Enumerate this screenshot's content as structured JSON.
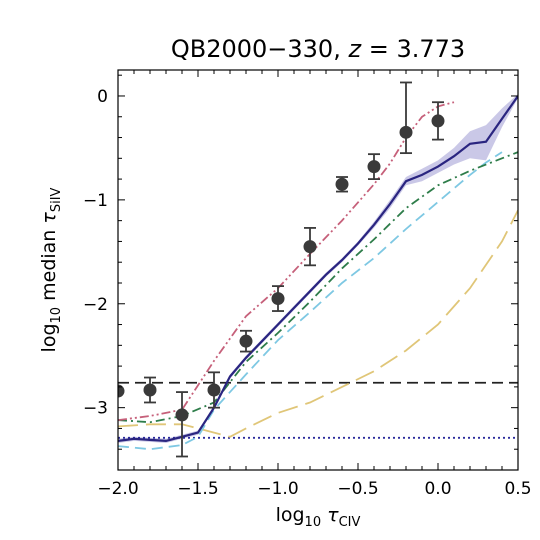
{
  "chart_data": {
    "type": "line",
    "title_main": "QB2000−330,",
    "title_z": "z",
    "title_eq": " = 3.773",
    "xlabel_prefix": "log",
    "xlabel_sub10": "10",
    "xlabel_tau": "τ",
    "xlabel_subion": "CIV",
    "ylabel_prefix": "log",
    "ylabel_sub10": "10",
    "ylabel_mid": " median ",
    "ylabel_tau": "τ",
    "ylabel_subion": "SiIV",
    "xlim": [
      -2.0,
      0.5
    ],
    "ylim": [
      -3.6,
      0.25
    ],
    "xticks": [
      -2.0,
      -1.5,
      -1.0,
      -0.5,
      0.0,
      0.5
    ],
    "xtick_labels": [
      "−2.0",
      "−1.5",
      "−1.0",
      "−0.5",
      "0.0",
      "0.5"
    ],
    "yticks": [
      0,
      -1,
      -2,
      -3
    ],
    "ytick_labels": [
      "0",
      "−1",
      "−2",
      "−3"
    ],
    "grid": false,
    "observed": {
      "x": [
        -2.0,
        -1.8,
        -1.6,
        -1.4,
        -1.2,
        -1.0,
        -0.8,
        -0.6,
        -0.4,
        -0.2,
        0.0
      ],
      "y": [
        -2.84,
        -2.83,
        -3.07,
        -2.83,
        -2.36,
        -1.95,
        -1.45,
        -0.85,
        -0.68,
        -0.35,
        -0.24
      ],
      "err_lo": [
        0.0,
        0.12,
        0.4,
        0.17,
        0.1,
        0.12,
        0.18,
        0.07,
        0.12,
        0.2,
        0.18
      ],
      "err_hi": [
        0.0,
        0.12,
        0.22,
        0.17,
        0.1,
        0.12,
        0.18,
        0.07,
        0.12,
        0.48,
        0.18
      ],
      "color": "#3a3a3a"
    },
    "hlines": [
      {
        "y": -2.76,
        "style": "dashed",
        "color": "#222222"
      },
      {
        "y": -3.29,
        "style": "dotted",
        "color": "#2b2b9c"
      }
    ],
    "series": [
      {
        "style": "solid",
        "color": "#2a2580",
        "band_color": "#b3b0dd",
        "x": [
          -2.0,
          -1.9,
          -1.8,
          -1.7,
          -1.6,
          -1.5,
          -1.4,
          -1.3,
          -1.2,
          -1.1,
          -1.0,
          -0.9,
          -0.8,
          -0.7,
          -0.6,
          -0.5,
          -0.4,
          -0.3,
          -0.2,
          -0.1,
          0.0,
          0.1,
          0.2,
          0.3,
          0.4,
          0.5
        ],
        "y": [
          -3.32,
          -3.3,
          -3.31,
          -3.32,
          -3.28,
          -3.24,
          -3.0,
          -2.7,
          -2.52,
          -2.36,
          -2.2,
          -2.04,
          -1.88,
          -1.72,
          -1.58,
          -1.42,
          -1.24,
          -1.04,
          -0.82,
          -0.76,
          -0.68,
          -0.58,
          -0.46,
          -0.44,
          -0.22,
          0.0
        ],
        "band_lo": [
          -3.34,
          -3.32,
          -3.33,
          -3.34,
          -3.3,
          -3.26,
          -3.02,
          -2.72,
          -2.54,
          -2.38,
          -2.22,
          -2.06,
          -1.9,
          -1.74,
          -1.6,
          -1.44,
          -1.27,
          -1.08,
          -0.86,
          -0.82,
          -0.74,
          -0.66,
          -0.6,
          -0.62,
          -0.3,
          -0.02
        ],
        "band_hi": [
          -3.3,
          -3.28,
          -3.29,
          -3.3,
          -3.26,
          -3.22,
          -2.98,
          -2.68,
          -2.5,
          -2.34,
          -2.18,
          -2.02,
          -1.86,
          -1.7,
          -1.56,
          -1.4,
          -1.21,
          -1.0,
          -0.78,
          -0.7,
          -0.62,
          -0.5,
          -0.34,
          -0.28,
          -0.12,
          0.02
        ]
      },
      {
        "style": "dashdotdot",
        "color": "#c6607a",
        "x": [
          -2.0,
          -1.8,
          -1.6,
          -1.4,
          -1.2,
          -1.0,
          -0.8,
          -0.6,
          -0.4,
          -0.3,
          -0.2,
          -0.1,
          0.0,
          0.1
        ],
        "y": [
          -3.12,
          -3.08,
          -3.02,
          -2.55,
          -2.12,
          -1.85,
          -1.52,
          -1.2,
          -0.85,
          -0.65,
          -0.4,
          -0.2,
          -0.1,
          -0.06
        ]
      },
      {
        "style": "dashdot",
        "color": "#2e7d4a",
        "x": [
          -2.0,
          -1.8,
          -1.6,
          -1.4,
          -1.2,
          -1.0,
          -0.8,
          -0.6,
          -0.4,
          -0.2,
          0.0,
          0.2,
          0.4,
          0.5
        ],
        "y": [
          -3.12,
          -3.14,
          -3.08,
          -2.95,
          -2.56,
          -2.28,
          -1.98,
          -1.66,
          -1.38,
          -1.08,
          -0.86,
          -0.72,
          -0.6,
          -0.54
        ]
      },
      {
        "style": "dashed",
        "color": "#7ec8e3",
        "x": [
          -2.0,
          -1.8,
          -1.6,
          -1.5,
          -1.4,
          -1.2,
          -1.0,
          -0.8,
          -0.6,
          -0.4,
          -0.2,
          0.0,
          0.2,
          0.3,
          0.4
        ],
        "y": [
          -3.37,
          -3.4,
          -3.36,
          -3.28,
          -3.02,
          -2.68,
          -2.35,
          -2.08,
          -1.8,
          -1.56,
          -1.28,
          -1.02,
          -0.76,
          -0.64,
          -0.54
        ]
      },
      {
        "style": "longdash",
        "color": "#e0c678",
        "x": [
          -2.0,
          -1.8,
          -1.6,
          -1.4,
          -1.3,
          -1.2,
          -1.0,
          -0.8,
          -0.6,
          -0.4,
          -0.2,
          0.0,
          0.2,
          0.4,
          0.5
        ],
        "y": [
          -3.18,
          -3.16,
          -3.16,
          -3.24,
          -3.28,
          -3.2,
          -3.05,
          -2.95,
          -2.8,
          -2.65,
          -2.45,
          -2.2,
          -1.85,
          -1.4,
          -1.1
        ]
      }
    ]
  }
}
